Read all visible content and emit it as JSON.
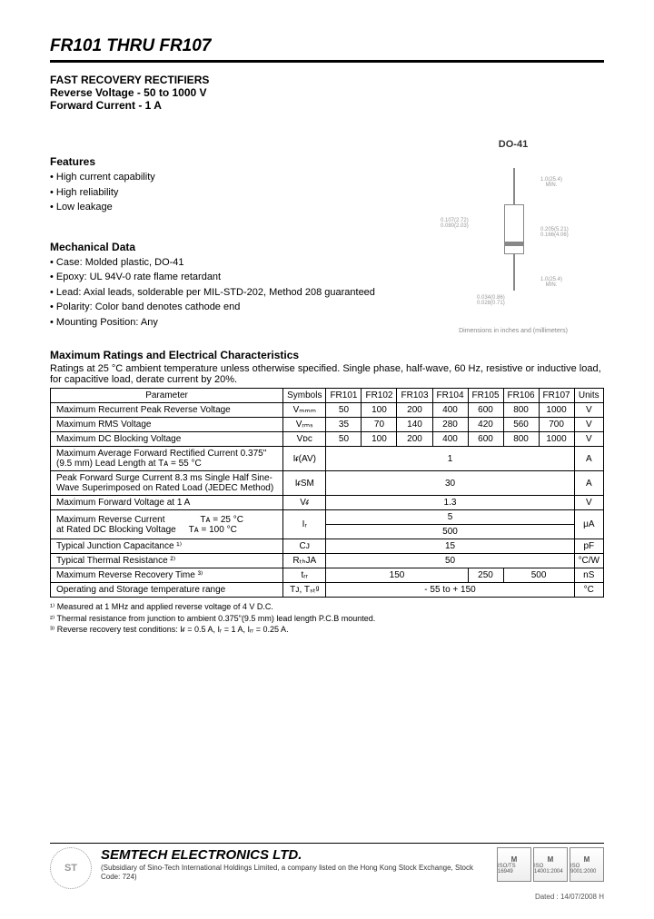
{
  "header": {
    "title": "FR101 THRU FR107"
  },
  "product": {
    "name": "FAST RECOVERY RECTIFIERS",
    "reverse_voltage": "Reverse Voltage - 50 to 1000 V",
    "forward_current": "Forward Current - 1 A"
  },
  "features": {
    "heading": "Features",
    "items": [
      "High current capability",
      "High reliability",
      "Low leakage"
    ]
  },
  "mechanical": {
    "heading": "Mechanical Data",
    "items": [
      "Case: Molded plastic, DO-41",
      "Epoxy: UL 94V-0 rate flame retardant",
      "Lead: Axial leads, solderable per MIL-STD-202, Method 208 guaranteed",
      "Polarity: Color band denotes cathode end",
      "Mounting Position: Any"
    ]
  },
  "package": {
    "label": "DO-41",
    "caption": "Dimensions in inches and (millimeters)"
  },
  "ratings": {
    "heading": "Maximum Ratings and Electrical Characteristics",
    "intro": "Ratings at 25 °C ambient temperature unless otherwise specified. Single phase, half-wave, 60 Hz, resistive or inductive load, for capacitive load, derate current by 20%.",
    "columns": [
      "Parameter",
      "Symbols",
      "FR101",
      "FR102",
      "FR103",
      "FR104",
      "FR105",
      "FR106",
      "FR107",
      "Units"
    ],
    "rows": [
      {
        "param": "Maximum Recurrent Peak Reverse Voltage",
        "symbol": "Vₘₘₘ",
        "values": [
          "50",
          "100",
          "200",
          "400",
          "600",
          "800",
          "1000"
        ],
        "unit": "V"
      },
      {
        "param": "Maximum RMS Voltage",
        "symbol": "Vᵣₘₛ",
        "values": [
          "35",
          "70",
          "140",
          "280",
          "420",
          "560",
          "700"
        ],
        "unit": "V"
      },
      {
        "param": "Maximum DC Blocking Voltage",
        "symbol": "Vᴅᴄ",
        "values": [
          "50",
          "100",
          "200",
          "400",
          "600",
          "800",
          "1000"
        ],
        "unit": "V"
      },
      {
        "param": "Maximum Average Forward Rectified Current 0.375\" (9.5 mm) Lead Length at Tᴀ = 55 °C",
        "symbol": "Iᵳ(AV)",
        "merged": "1",
        "unit": "A"
      },
      {
        "param": "Peak Forward Surge Current 8.3 ms Single Half Sine-Wave Superimposed on Rated Load (JEDEC Method)",
        "symbol": "IᵳSM",
        "merged": "30",
        "unit": "A"
      },
      {
        "param": "Maximum Forward Voltage at 1 A",
        "symbol": "Vᵳ",
        "merged": "1.3",
        "unit": "V"
      },
      {
        "param": "Maximum Reverse Current              Tᴀ = 25 °C\nat Rated DC Blocking Voltage     Tᴀ = 100 °C",
        "symbol": "Iᵣ",
        "merged_two": [
          "5",
          "500"
        ],
        "unit": "μA"
      },
      {
        "param": "Typical Junction Capacitance ¹⁾",
        "symbol": "Cᴊ",
        "merged": "15",
        "unit": "pF"
      },
      {
        "param": "Typical Thermal Resistance ²⁾",
        "symbol": "RₜₕJA",
        "merged": "50",
        "unit": "°C/W"
      },
      {
        "param": "Maximum Reverse Recovery Time ³⁾",
        "symbol": "tᵣᵣ",
        "groups": [
          {
            "span": 4,
            "val": "150"
          },
          {
            "span": 1,
            "val": "250"
          },
          {
            "span": 2,
            "val": "500"
          }
        ],
        "unit": "nS"
      },
      {
        "param": "Operating and Storage temperature range",
        "symbol": "Tᴊ, Tₛₜᵍ",
        "merged": "- 55 to + 150",
        "unit": "°C"
      }
    ]
  },
  "footnotes": [
    "¹⁾ Measured at 1 MHz and applied reverse voltage of 4 V D.C.",
    "²⁾ Thermal resistance from junction to ambient 0.375\"(9.5 mm) lead length P.C.B mounted.",
    "³⁾ Reverse recovery test conditions: Iᵳ = 0.5 A, Iᵣ = 1 A, Iᵣᵣ = 0.25 A."
  ],
  "footer": {
    "company": "SEMTECH ELECTRONICS LTD.",
    "subsidiary": "(Subsidiary of Sino-Tech International Holdings Limited, a company listed on the Hong Kong Stock Exchange, Stock Code: 724)",
    "certs": [
      "ISO/TS 16949",
      "ISO 14001:2004",
      "ISO 9001:2000"
    ],
    "dated": "Dated : 14/07/2008   H"
  },
  "colors": {
    "text": "#000000",
    "rule": "#000000",
    "faint": "#888888",
    "bg": "#ffffff"
  }
}
